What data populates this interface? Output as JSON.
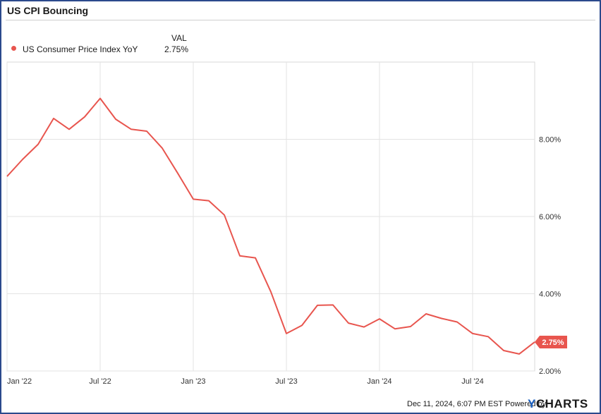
{
  "chart_data": {
    "type": "line",
    "title": "US CPI Bouncing",
    "legend_header": "VAL",
    "series": [
      {
        "name": "US Consumer Price Index YoY",
        "color": "#e8554e",
        "last_value_label": "2.75%",
        "x": [
          "2022-01",
          "2022-02",
          "2022-03",
          "2022-04",
          "2022-05",
          "2022-06",
          "2022-07",
          "2022-08",
          "2022-09",
          "2022-10",
          "2022-11",
          "2022-12",
          "2023-01",
          "2023-02",
          "2023-03",
          "2023-04",
          "2023-05",
          "2023-06",
          "2023-07",
          "2023-08",
          "2023-09",
          "2023-10",
          "2023-11",
          "2023-12",
          "2024-01",
          "2024-02",
          "2024-03",
          "2024-04",
          "2024-05",
          "2024-06",
          "2024-07",
          "2024-08",
          "2024-09",
          "2024-10",
          "2024-11"
        ],
        "values": [
          7.04,
          7.48,
          7.87,
          8.54,
          8.26,
          8.58,
          9.06,
          8.52,
          8.26,
          8.21,
          7.77,
          7.12,
          6.45,
          6.41,
          6.04,
          4.98,
          4.93,
          4.05,
          2.97,
          3.18,
          3.7,
          3.71,
          3.24,
          3.14,
          3.35,
          3.09,
          3.15,
          3.48,
          3.36,
          3.27,
          2.97,
          2.89,
          2.53,
          2.44,
          2.75
        ]
      }
    ],
    "x_ticks": [
      "Jan '22",
      "Jul '22",
      "Jan '23",
      "Jul '23",
      "Jan '24",
      "Jul '24"
    ],
    "y_ticks": [
      "2.00%",
      "4.00%",
      "6.00%",
      "8.00%"
    ],
    "y_tick_values": [
      2,
      4,
      6,
      8
    ],
    "ylim": [
      2.0,
      10.0
    ],
    "grid": true,
    "legend_position": "top-left"
  },
  "footer": {
    "timestamp": "Dec 11, 2024, 6:07 PM EST",
    "powered_by": "Powered by",
    "brand_y": "Y",
    "brand_rest": "CHARTS"
  }
}
